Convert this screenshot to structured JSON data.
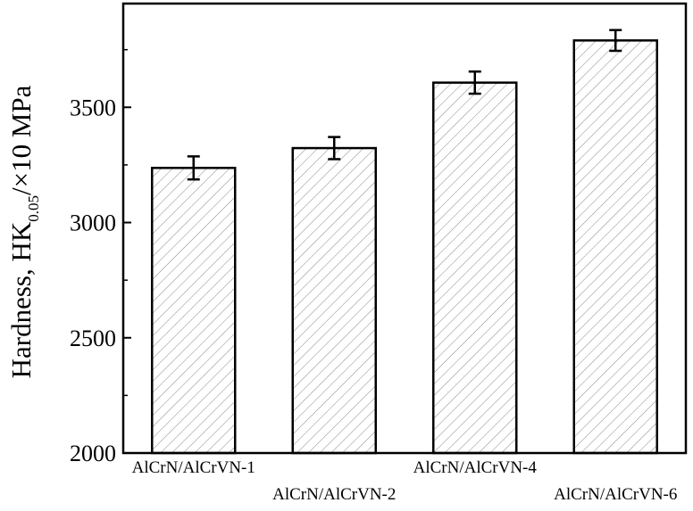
{
  "chart_data": {
    "type": "bar",
    "categories": [
      "AlCrN/AlCrVN-1",
      "AlCrN/AlCrVN-2",
      "AlCrN/AlCrVN-4",
      "AlCrN/AlCrVN-6"
    ],
    "values": [
      3237,
      3323,
      3607,
      3790
    ],
    "errors": [
      50,
      48,
      48,
      45
    ],
    "ylim": [
      2000,
      3950
    ],
    "yticks": [
      2000,
      2500,
      3000,
      3500
    ],
    "ylabel_main": "Hardness, HK",
    "ylabel_sub": "0.05",
    "ylabel_tail": "/×10 MPa",
    "xlabel": "",
    "grid": false,
    "bar_fill": "hatched"
  }
}
